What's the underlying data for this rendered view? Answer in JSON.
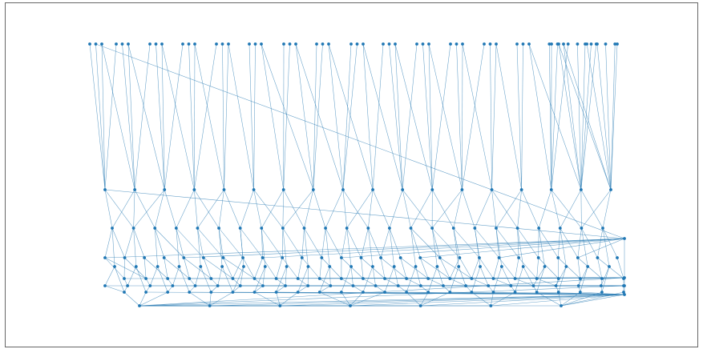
{
  "diagram": {
    "type": "layered-graph",
    "colors": {
      "edge": "#2f7fb5",
      "node": "#1f77b4",
      "frame": "#000000",
      "background": "#ffffff"
    },
    "node_count_estimate": 229,
    "layers": [
      {
        "id": "L0",
        "count": 57
      },
      {
        "id": "L1",
        "count": 18
      },
      {
        "id": "L2",
        "count": 24
      },
      {
        "id": "L3",
        "count": 27
      },
      {
        "id": "L4",
        "count": 24
      },
      {
        "id": "L5",
        "count": 24
      },
      {
        "id": "L6",
        "count": 24
      },
      {
        "id": "L7",
        "count": 24
      },
      {
        "id": "L8",
        "count": 7
      }
    ]
  }
}
